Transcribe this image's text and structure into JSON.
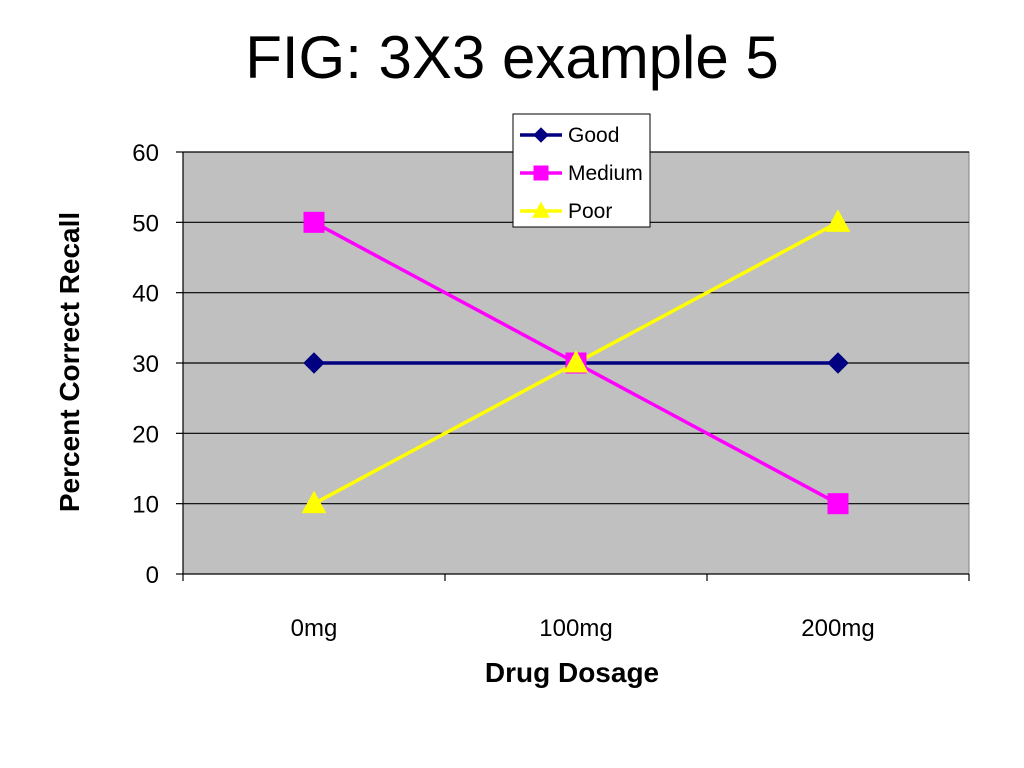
{
  "slide": {
    "title": "FIG: 3X3 example 5"
  },
  "chart_data": {
    "type": "line",
    "title": "",
    "xlabel": "Drug Dosage",
    "ylabel": "Percent Correct Recall",
    "categories": [
      "0mg",
      "100mg",
      "200mg"
    ],
    "ylim": [
      0,
      60
    ],
    "yticks": [
      0,
      10,
      20,
      30,
      40,
      50,
      60
    ],
    "grid": true,
    "plot_background": "#c0c0c0",
    "legend_position": "top-right",
    "series": [
      {
        "name": "Good",
        "values": [
          30,
          30,
          30
        ],
        "color": "#000080",
        "marker": "diamond"
      },
      {
        "name": "Medium",
        "values": [
          50,
          30,
          10
        ],
        "color": "#ff00ff",
        "marker": "square"
      },
      {
        "name": "Poor",
        "values": [
          10,
          30,
          50
        ],
        "color": "#ffff00",
        "marker": "triangle"
      }
    ]
  }
}
